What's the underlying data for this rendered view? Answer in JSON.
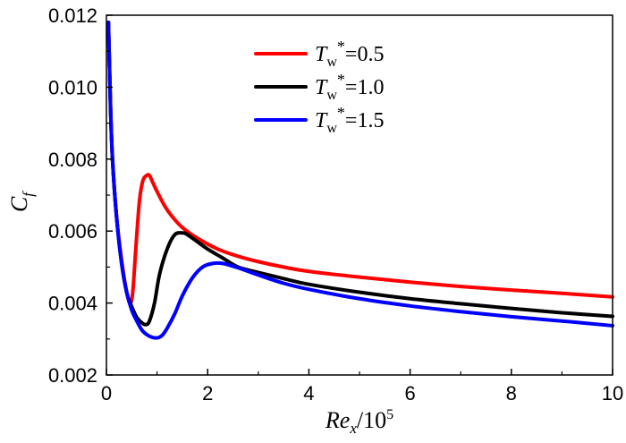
{
  "chart_data": {
    "type": "line",
    "xlabel": {
      "main": "Re",
      "sub": "x",
      "suffix": "/10",
      "sup": "5"
    },
    "ylabel": {
      "main": "C",
      "sub": "f"
    },
    "xlim": [
      0,
      10
    ],
    "ylim": [
      0.002,
      0.012
    ],
    "x_ticks": [
      0,
      2,
      4,
      6,
      8,
      10
    ],
    "x_tick_labels": [
      "0",
      "2",
      "4",
      "6",
      "8",
      "10"
    ],
    "y_ticks": [
      0.002,
      0.004,
      0.006,
      0.008,
      0.01,
      0.012
    ],
    "y_tick_labels": [
      "0.002",
      "0.004",
      "0.006",
      "0.008",
      "0.010",
      "0.012"
    ],
    "grid": false,
    "legend_position": "top-center",
    "series": [
      {
        "name": "0.5",
        "legend": {
          "main": "T",
          "sub": "w",
          "sup": "*",
          "value": "=0.5"
        },
        "color": "#ff0000",
        "x": [
          0.04,
          0.08,
          0.12,
          0.2,
          0.3,
          0.4,
          0.47,
          0.52,
          0.58,
          0.65,
          0.72,
          0.8,
          0.85,
          0.9,
          1.0,
          1.15,
          1.3,
          1.5,
          1.8,
          2.2,
          2.6,
          3.0,
          3.5,
          4.0,
          5.0,
          6.0,
          7.0,
          8.0,
          9.0,
          10.0
        ],
        "y": [
          0.0118,
          0.0095,
          0.008,
          0.0064,
          0.0052,
          0.0043,
          0.004,
          0.0043,
          0.0055,
          0.0068,
          0.0074,
          0.00755,
          0.00755,
          0.0074,
          0.0071,
          0.0067,
          0.0064,
          0.0061,
          0.0058,
          0.0055,
          0.0053,
          0.00515,
          0.005,
          0.00488,
          0.00472,
          0.00458,
          0.00446,
          0.00436,
          0.00427,
          0.00417
        ]
      },
      {
        "name": "1.0",
        "legend": {
          "main": "T",
          "sub": "w",
          "sup": "*",
          "value": "=1.0"
        },
        "color": "#000000",
        "x": [
          0.04,
          0.08,
          0.12,
          0.2,
          0.3,
          0.4,
          0.5,
          0.6,
          0.7,
          0.78,
          0.85,
          0.95,
          1.05,
          1.2,
          1.35,
          1.5,
          1.6,
          1.8,
          2.0,
          2.3,
          2.6,
          3.0,
          3.5,
          4.0,
          5.0,
          6.0,
          7.0,
          8.0,
          9.0,
          10.0
        ],
        "y": [
          0.0118,
          0.0095,
          0.008,
          0.0064,
          0.0051,
          0.0043,
          0.0039,
          0.0036,
          0.00345,
          0.0034,
          0.0035,
          0.004,
          0.0048,
          0.0055,
          0.0059,
          0.00595,
          0.0059,
          0.0057,
          0.0055,
          0.00525,
          0.005,
          0.00485,
          0.00468,
          0.00452,
          0.0043,
          0.00412,
          0.00398,
          0.00385,
          0.00373,
          0.00363
        ]
      },
      {
        "name": "1.5",
        "legend": {
          "main": "T",
          "sub": "w",
          "sup": "*",
          "value": "=1.5"
        },
        "color": "#0000ff",
        "x": [
          0.04,
          0.08,
          0.12,
          0.2,
          0.3,
          0.4,
          0.5,
          0.6,
          0.7,
          0.8,
          0.9,
          1.0,
          1.1,
          1.2,
          1.35,
          1.5,
          1.7,
          1.9,
          2.1,
          2.3,
          2.6,
          3.0,
          3.5,
          4.0,
          5.0,
          6.0,
          7.0,
          8.0,
          9.0,
          10.0
        ],
        "y": [
          0.0118,
          0.0095,
          0.008,
          0.0064,
          0.0051,
          0.0043,
          0.0038,
          0.0035,
          0.00325,
          0.00312,
          0.00305,
          0.00303,
          0.0031,
          0.0033,
          0.0037,
          0.0042,
          0.0047,
          0.005,
          0.0051,
          0.0051,
          0.00498,
          0.00478,
          0.00455,
          0.00438,
          0.00412,
          0.00392,
          0.00376,
          0.00362,
          0.0035,
          0.00337
        ]
      }
    ]
  }
}
